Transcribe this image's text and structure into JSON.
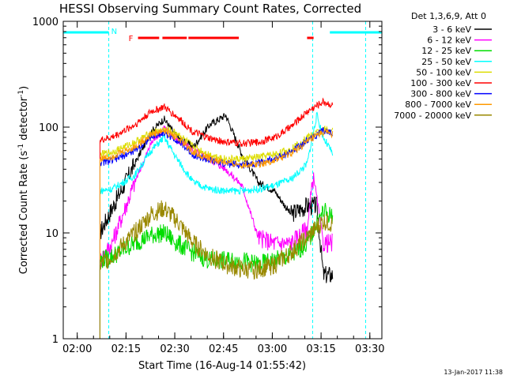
{
  "chart_data": {
    "type": "line",
    "title": "HESSI Observing Summary Count Rates, Corrected",
    "xlabel": "Start Time (16-Aug-14 01:55:42)",
    "ylabel_main": "Corrected Count Rate (s",
    "ylabel_sup1": "-1",
    "ylabel_mid": " detector",
    "ylabel_sup2": "-1",
    "ylabel_end": ")",
    "y_scale": "log",
    "xlim_minutes": [
      0,
      98
    ],
    "ylim": [
      1,
      1000
    ],
    "x_tick_labels": [
      "02:00",
      "02:15",
      "02:30",
      "02:45",
      "03:00",
      "03:15",
      "03:30"
    ],
    "x_tick_minutes": [
      4.3,
      19.3,
      34.3,
      49.3,
      64.3,
      79.3,
      94.3
    ],
    "y_tick_labels": [
      "1",
      "10",
      "100",
      "1000"
    ],
    "y_tick_values": [
      1,
      10,
      100,
      1000
    ],
    "legend_title": "Det 1,3,6,9, Att 0",
    "legend_position": "right",
    "flags": {
      "night_label": "N",
      "flare_label": "F"
    },
    "series": [
      {
        "name": "3 - 6 keV",
        "color": "#000000",
        "x": [
          11.3,
          15,
          22,
          27,
          31,
          35,
          40,
          45,
          50,
          55,
          60,
          65,
          70,
          75,
          78,
          80,
          82,
          83
        ],
        "y": [
          10,
          17,
          45,
          90,
          120,
          80,
          65,
          105,
          130,
          55,
          30,
          25,
          15,
          18,
          18,
          4,
          4,
          4
        ]
      },
      {
        "name": "6 - 12 keV",
        "color": "#ff00ff",
        "x": [
          11.3,
          15,
          22,
          27,
          31,
          35,
          40,
          45,
          50,
          55,
          60,
          65,
          70,
          75,
          77,
          80,
          83
        ],
        "y": [
          5.5,
          8,
          30,
          70,
          100,
          75,
          60,
          50,
          40,
          28,
          9,
          8,
          8,
          11,
          35,
          8,
          8
        ]
      },
      {
        "name": "12 - 25 keV",
        "color": "#00dd00",
        "x": [
          11.3,
          15,
          22,
          27,
          31,
          35,
          40,
          45,
          50,
          55,
          60,
          65,
          70,
          75,
          80,
          83
        ],
        "y": [
          5.5,
          6,
          8,
          9.5,
          10,
          8,
          6.5,
          5.5,
          5.5,
          5.5,
          5,
          5.5,
          6,
          8,
          16,
          14
        ]
      },
      {
        "name": "25 - 50 keV",
        "color": "#00ffff",
        "x": [
          11.3,
          15,
          22,
          27,
          31,
          35,
          40,
          45,
          50,
          55,
          60,
          65,
          70,
          75,
          78,
          80,
          83
        ],
        "y": [
          25,
          26,
          35,
          60,
          80,
          50,
          30,
          26,
          25,
          25,
          26,
          28,
          32,
          45,
          130,
          80,
          55
        ]
      },
      {
        "name": "50 - 100 keV",
        "color": "#dddd00",
        "x": [
          11.3,
          15,
          22,
          27,
          31,
          35,
          40,
          45,
          50,
          55,
          60,
          65,
          70,
          75,
          80,
          83
        ],
        "y": [
          55,
          58,
          72,
          88,
          95,
          88,
          65,
          55,
          50,
          50,
          52,
          55,
          62,
          80,
          95,
          92
        ]
      },
      {
        "name": "100 - 300 keV",
        "color": "#ff0000",
        "x": [
          11.3,
          15,
          22,
          27,
          31,
          35,
          40,
          45,
          50,
          55,
          60,
          65,
          70,
          75,
          80,
          83
        ],
        "y": [
          75,
          80,
          105,
          140,
          155,
          125,
          90,
          78,
          72,
          70,
          72,
          80,
          100,
          140,
          175,
          160
        ]
      },
      {
        "name": "300 - 800 keV",
        "color": "#0000ff",
        "x": [
          11.3,
          15,
          22,
          27,
          31,
          35,
          40,
          45,
          50,
          55,
          60,
          65,
          70,
          75,
          80,
          83
        ],
        "y": [
          46,
          48,
          60,
          80,
          88,
          75,
          55,
          48,
          45,
          44,
          46,
          50,
          58,
          75,
          92,
          88
        ]
      },
      {
        "name": "800 - 7000 keV",
        "color": "#ff9900",
        "x": [
          11.3,
          15,
          22,
          27,
          31,
          35,
          40,
          45,
          50,
          55,
          60,
          65,
          70,
          75,
          80,
          83
        ],
        "y": [
          50,
          53,
          65,
          85,
          92,
          80,
          58,
          50,
          46,
          44,
          45,
          48,
          56,
          72,
          90,
          86
        ]
      },
      {
        "name": "7000 - 20000 keV",
        "color": "#998800",
        "x": [
          11.3,
          15,
          22,
          27,
          31,
          35,
          40,
          45,
          50,
          55,
          60,
          65,
          70,
          75,
          80,
          83
        ],
        "y": [
          5,
          6,
          10,
          15,
          17,
          13,
          8,
          6,
          5,
          4.5,
          4.5,
          5,
          6.5,
          9,
          13,
          12
        ]
      }
    ],
    "night_segments": [
      [
        0,
        14
      ],
      [
        82,
        98
      ]
    ],
    "night_markers": [
      14,
      76.7,
      93
    ],
    "flare_segments": [
      [
        23,
        29.5
      ],
      [
        30.5,
        38
      ],
      [
        38.5,
        54
      ],
      [
        75,
        77
      ]
    ]
  },
  "footer": {
    "date": "13-Jan-2017 11:38"
  }
}
